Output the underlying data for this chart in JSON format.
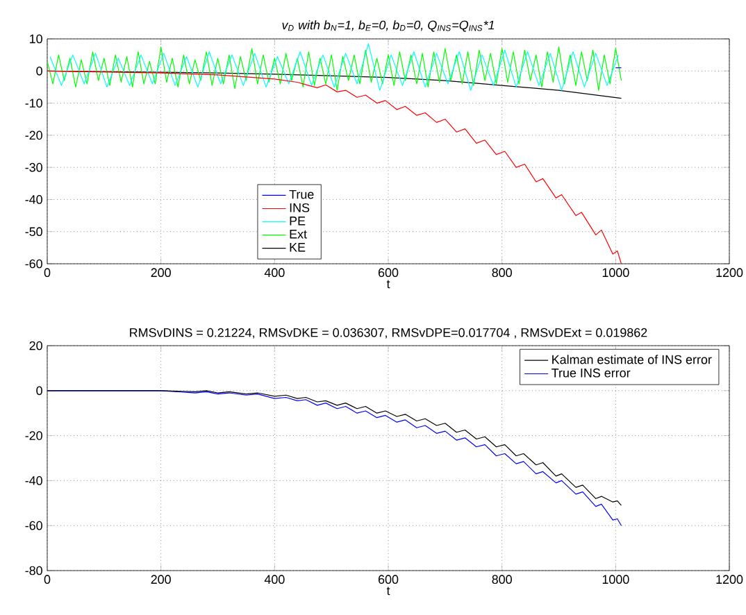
{
  "chart_data": [
    {
      "type": "line",
      "title": "v$_{D}$ with b$_{N}$=1,  b$_{E}$=0,  b$_{D}$=0,  Q$_{INS}$=Q$_{INS}$*1",
      "xlabel": "t",
      "xlim": [
        0,
        1200
      ],
      "ylim": [
        -60,
        10
      ],
      "xticks": [
        0,
        200,
        400,
        600,
        800,
        1000,
        1200
      ],
      "yticks": [
        -60,
        -50,
        -40,
        -30,
        -20,
        -10,
        0,
        10
      ],
      "grid": true,
      "legend": "bottom",
      "line_style": "solid",
      "series": [
        {
          "name": "True",
          "color": "#0000ff",
          "x": [
            1000,
            1010
          ],
          "values": [
            1,
            1
          ]
        },
        {
          "name": "INS",
          "color": "#ff0000",
          "x": [
            0,
            100,
            200,
            300,
            400,
            440,
            460,
            475,
            490,
            510,
            525,
            545,
            560,
            580,
            595,
            615,
            630,
            650,
            665,
            685,
            700,
            720,
            735,
            755,
            770,
            790,
            805,
            825,
            840,
            860,
            872,
            895,
            905,
            930,
            940,
            965,
            975,
            995,
            1003,
            1010
          ],
          "values": [
            0,
            -0.3,
            -0.6,
            -1.2,
            -2.5,
            -3.5,
            -4.5,
            -5.2,
            -4.3,
            -6.5,
            -6,
            -8.2,
            -7.5,
            -10,
            -9.2,
            -12,
            -11,
            -13.8,
            -13,
            -16,
            -15,
            -19,
            -18,
            -22.5,
            -21.5,
            -26,
            -25,
            -30,
            -29,
            -34.5,
            -33.5,
            -39.5,
            -38.5,
            -45,
            -44,
            -51,
            -49.5,
            -57,
            -56,
            -60
          ]
        },
        {
          "name": "PE",
          "color": "#00ffff",
          "x": [
            5,
            25,
            45,
            65,
            85,
            105,
            125,
            145,
            165,
            185,
            205,
            225,
            245,
            265,
            285,
            305,
            325,
            345,
            365,
            385,
            405,
            425,
            445,
            465,
            485,
            505,
            525,
            545,
            565,
            585,
            605,
            625,
            645,
            665,
            685,
            705,
            725,
            745,
            765,
            785,
            805,
            825,
            845,
            865,
            885,
            905,
            925,
            945,
            965,
            985,
            1005
          ],
          "values": [
            4.5,
            -4.5,
            5,
            -4,
            5.5,
            -5,
            4,
            -4.5,
            5,
            -4,
            5.5,
            -4.5,
            4.5,
            -5,
            6,
            -4,
            5,
            -4.5,
            5.5,
            -5,
            4.5,
            -4,
            6,
            -4.5,
            5,
            -5,
            5.5,
            -4,
            8.5,
            -6,
            5,
            -4.5,
            6,
            -5,
            5.5,
            -4,
            6,
            -6,
            5,
            -4.5,
            6.5,
            -5,
            6,
            -4.5,
            5.5,
            -6,
            6,
            -5,
            5.5,
            -4.5,
            5
          ]
        },
        {
          "name": "Ext",
          "color": "#00ff00",
          "x": [
            0,
            10,
            20,
            30,
            40,
            50,
            60,
            70,
            80,
            90,
            100,
            110,
            120,
            130,
            140,
            150,
            160,
            170,
            180,
            190,
            200,
            210,
            220,
            230,
            240,
            250,
            260,
            270,
            280,
            290,
            300,
            310,
            320,
            330,
            340,
            350,
            360,
            370,
            380,
            390,
            400,
            410,
            420,
            430,
            440,
            450,
            460,
            470,
            480,
            490,
            500,
            510,
            520,
            530,
            540,
            550,
            560,
            570,
            580,
            590,
            600,
            610,
            620,
            630,
            640,
            650,
            660,
            670,
            680,
            690,
            700,
            710,
            720,
            730,
            740,
            750,
            760,
            770,
            780,
            790,
            800,
            810,
            820,
            830,
            840,
            850,
            860,
            870,
            880,
            890,
            900,
            910,
            920,
            930,
            940,
            950,
            960,
            970,
            980,
            990,
            1000,
            1010
          ],
          "values": [
            3,
            -4,
            5,
            -3,
            4,
            -5,
            3.5,
            -4,
            6,
            -3,
            4,
            -4.5,
            5,
            -3.5,
            4.5,
            -5,
            6,
            -4,
            3,
            -4,
            7.5,
            -3.5,
            4,
            -5,
            5,
            -4,
            3.5,
            -3,
            6,
            -4.5,
            4,
            -4,
            5,
            -5.5,
            4.5,
            -3,
            7,
            -4,
            5,
            -3.5,
            4,
            -4,
            5.5,
            -3,
            4,
            -5,
            6,
            -4.5,
            4,
            -4,
            5,
            -6,
            4.5,
            -3,
            5,
            -4,
            6.5,
            -3.5,
            4,
            -4,
            5,
            -4.5,
            6,
            -3,
            5,
            -4,
            5.5,
            -5,
            6,
            -3.5,
            7,
            -3,
            5,
            -4,
            6,
            -4.5,
            6.5,
            -3,
            5.5,
            -4,
            7,
            -3.5,
            6,
            -4,
            6.5,
            -3,
            5,
            -5,
            6,
            -3.5,
            7.5,
            -4,
            5,
            -4.5,
            6,
            -3,
            6.5,
            -6,
            5,
            -4,
            7,
            -3
          ]
        },
        {
          "name": "KE",
          "color": "#000000",
          "x": [
            0,
            100,
            200,
            300,
            400,
            500,
            600,
            700,
            800,
            900,
            1010
          ],
          "values": [
            0,
            -0.2,
            -0.4,
            -0.6,
            -1,
            -1.5,
            -2,
            -3,
            -4.5,
            -6,
            -8.5
          ]
        }
      ]
    },
    {
      "type": "line",
      "title": "RMSvDINS = 0.21224, RMSvDKE = 0.036307, RMSvDPE=0.017704 , RMSvDExt = 0.019862",
      "xlabel": "t",
      "xlim": [
        0,
        1200
      ],
      "ylim": [
        -80,
        20
      ],
      "xticks": [
        0,
        200,
        400,
        600,
        800,
        1000,
        1200
      ],
      "yticks": [
        -80,
        -60,
        -40,
        -20,
        0,
        20
      ],
      "grid": true,
      "legend": "top right",
      "line_style": "solid",
      "series": [
        {
          "name": "Kalman estimate of INS error",
          "color": "#000000",
          "x": [
            0,
            200,
            260,
            280,
            300,
            320,
            350,
            370,
            400,
            420,
            440,
            455,
            475,
            490,
            510,
            525,
            545,
            560,
            580,
            595,
            615,
            630,
            650,
            665,
            685,
            700,
            720,
            735,
            755,
            770,
            790,
            805,
            825,
            838,
            860,
            872,
            895,
            905,
            930,
            942,
            965,
            975,
            995,
            1003,
            1010
          ],
          "values": [
            0,
            0,
            -0.5,
            0,
            -1,
            -0.5,
            -1.5,
            -1,
            -2.5,
            -2,
            -3.5,
            -3,
            -5,
            -4.5,
            -6.5,
            -5.5,
            -8,
            -7,
            -10,
            -9,
            -11.5,
            -10.5,
            -13.5,
            -12.5,
            -15.5,
            -14.5,
            -18.5,
            -17.5,
            -21.5,
            -20.5,
            -25,
            -24,
            -29,
            -28,
            -33,
            -32,
            -38,
            -37,
            -43,
            -42,
            -48,
            -47,
            -49.5,
            -49,
            -51
          ]
        },
        {
          "name": "True INS error",
          "color": "#0000ff",
          "x": [
            0,
            100,
            200,
            260,
            280,
            300,
            320,
            350,
            370,
            400,
            420,
            440,
            455,
            475,
            490,
            510,
            525,
            545,
            560,
            580,
            595,
            615,
            630,
            650,
            665,
            685,
            700,
            720,
            735,
            755,
            770,
            790,
            805,
            825,
            838,
            860,
            872,
            895,
            905,
            930,
            942,
            965,
            975,
            995,
            1003,
            1010
          ],
          "values": [
            0,
            0,
            0,
            -1,
            -0.5,
            -1.5,
            -1,
            -2,
            -1.5,
            -3.5,
            -3,
            -4.5,
            -4,
            -6.5,
            -5.5,
            -8,
            -7,
            -10,
            -9,
            -12,
            -11,
            -14,
            -13,
            -16.5,
            -15.5,
            -19,
            -18,
            -22,
            -21,
            -25,
            -24,
            -29,
            -28,
            -32.5,
            -31.5,
            -37,
            -36,
            -41,
            -40,
            -46,
            -45,
            -51.5,
            -50.5,
            -57.5,
            -57,
            -60
          ]
        }
      ]
    }
  ]
}
